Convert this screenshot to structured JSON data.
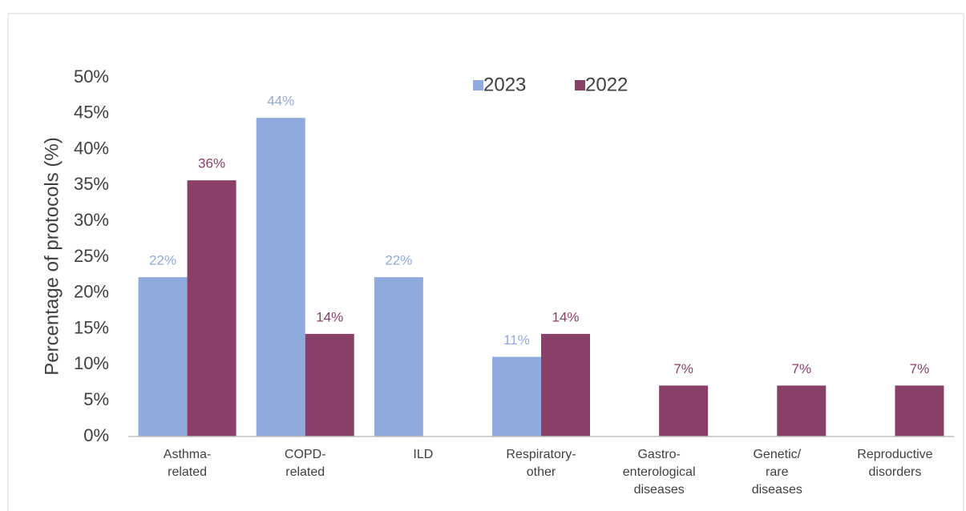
{
  "chart_data": {
    "type": "bar",
    "y_label": "Percentage of protocols (%)",
    "categories": [
      "Asthma-\nrelated",
      "COPD-\nrelated",
      "ILD",
      "Respiratory-\nother",
      "Gastro-\nenterological\ndiseases",
      "Genetic/\nrare\ndiseases",
      "Reproductive\ndisorders"
    ],
    "series": [
      {
        "name": "2023",
        "color": "#8faadc",
        "values": [
          22.2,
          44.4,
          22.2,
          11.1,
          null,
          null,
          null
        ],
        "value_labels": [
          "22%",
          "44%",
          "22%",
          "11%",
          null,
          null,
          null
        ]
      },
      {
        "name": "2022",
        "color": "#893f67",
        "values": [
          35.7,
          14.3,
          null,
          14.3,
          7.1,
          7.1,
          7.1
        ],
        "value_labels": [
          "36%",
          "14%",
          null,
          "14%",
          "7%",
          "7%",
          "7%"
        ]
      }
    ],
    "ylim": [
      0,
      50
    ],
    "yticks": [
      {
        "value": 0,
        "label": "0%"
      },
      {
        "value": 5,
        "label": "5%"
      },
      {
        "value": 10,
        "label": "10%"
      },
      {
        "value": 15,
        "label": "15%"
      },
      {
        "value": 20,
        "label": "20%"
      },
      {
        "value": 25,
        "label": "25%"
      },
      {
        "value": 30,
        "label": "30%"
      },
      {
        "value": 35,
        "label": "35%"
      },
      {
        "value": 40,
        "label": "40%"
      },
      {
        "value": 45,
        "label": "45%"
      },
      {
        "value": 50,
        "label": "50%"
      }
    ],
    "grid": false,
    "legend": "top"
  }
}
